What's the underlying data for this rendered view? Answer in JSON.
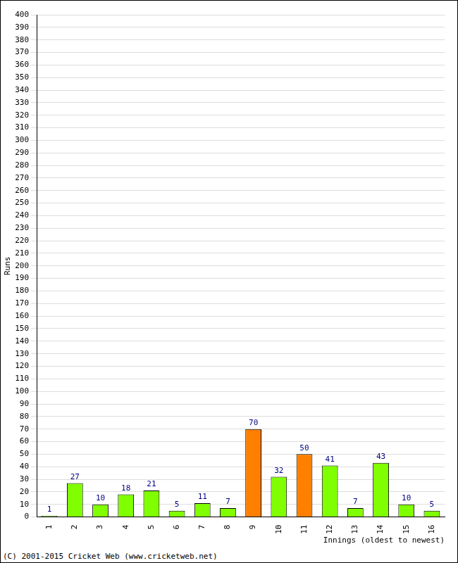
{
  "chart_data": {
    "type": "bar",
    "categories": [
      "1",
      "2",
      "3",
      "4",
      "5",
      "6",
      "7",
      "8",
      "9",
      "10",
      "11",
      "12",
      "13",
      "14",
      "15",
      "16"
    ],
    "values": [
      1,
      27,
      10,
      18,
      21,
      5,
      11,
      7,
      70,
      32,
      50,
      41,
      7,
      43,
      10,
      5
    ],
    "colors": [
      "#80ff00",
      "#80ff00",
      "#80ff00",
      "#80ff00",
      "#80ff00",
      "#80ff00",
      "#80ff00",
      "#80ff00",
      "#ff8000",
      "#80ff00",
      "#ff8000",
      "#80ff00",
      "#80ff00",
      "#80ff00",
      "#80ff00",
      "#80ff00"
    ],
    "x_label": "Innings (oldest to newest)",
    "y_label": "Runs",
    "ylim": [
      0,
      400
    ],
    "yticks": [
      0,
      10,
      20,
      30,
      40,
      50,
      60,
      70,
      80,
      90,
      100,
      110,
      120,
      130,
      140,
      150,
      160,
      170,
      180,
      190,
      200,
      210,
      220,
      230,
      240,
      250,
      260,
      270,
      280,
      290,
      300,
      310,
      320,
      330,
      340,
      350,
      360,
      370,
      380,
      390,
      400
    ],
    "grid": true,
    "data_labels": true,
    "annotations": [
      "(C) 2001-2015 Cricket Web (www.cricketweb.net)"
    ]
  }
}
